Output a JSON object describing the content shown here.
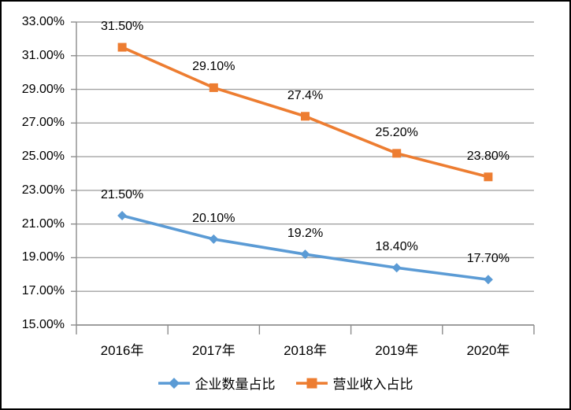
{
  "chart_data": {
    "type": "line",
    "categories": [
      "2016年",
      "2017年",
      "2018年",
      "2019年",
      "2020年"
    ],
    "series": [
      {
        "name": "企业数量占比",
        "values": [
          21.5,
          20.1,
          19.2,
          18.4,
          17.7
        ],
        "point_labels": [
          "21.50%",
          "20.10%",
          "19.2%",
          "18.40%",
          "17.70%"
        ],
        "color": "#5B9BD5",
        "marker": "diamond"
      },
      {
        "name": "营业收入占比",
        "values": [
          31.5,
          29.1,
          27.4,
          25.2,
          23.8
        ],
        "point_labels": [
          "31.50%",
          "29.10%",
          "27.4%",
          "25.20%",
          "23.80%"
        ],
        "color": "#ED7D31",
        "marker": "square"
      }
    ],
    "title": "",
    "xlabel": "",
    "ylabel": "",
    "ylim": [
      15,
      33
    ],
    "ytick_step": 2,
    "ytick_labels": [
      "15.00%",
      "17.00%",
      "19.00%",
      "21.00%",
      "23.00%",
      "25.00%",
      "27.00%",
      "29.00%",
      "31.00%",
      "33.00%"
    ],
    "grid": true,
    "legend_position": "bottom"
  },
  "colors": {
    "gridline": "#A3A3A3",
    "axis": "#8C8C8C",
    "text": "#000000",
    "background": "#FFFFFF",
    "frame_border": "#000000"
  }
}
